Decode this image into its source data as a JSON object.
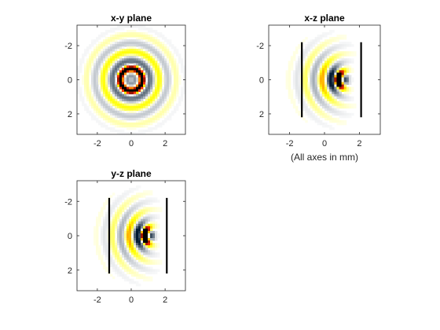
{
  "chart_data": [
    {
      "type": "heatmap",
      "title": "x-y plane",
      "x_ticks": [
        -2,
        0,
        2
      ],
      "y_ticks": [
        -2,
        0,
        2
      ],
      "xlim": [
        -3.2,
        3.2
      ],
      "ylim": [
        -3.2,
        3.2
      ],
      "y_direction": "reverse",
      "colormap": [
        "#001830",
        "#ffffff",
        "#ffff00",
        "#ff4000",
        "#000000"
      ],
      "pattern": "concentric rings centered at origin",
      "barriers": []
    },
    {
      "type": "heatmap",
      "title": "x-z plane",
      "x_ticks": [
        -2,
        0,
        2
      ],
      "y_ticks": [
        -2,
        0,
        2
      ],
      "xlim": [
        -3.2,
        3.2
      ],
      "ylim": [
        -3.2,
        3.2
      ],
      "y_direction": "reverse",
      "colormap": [
        "#001830",
        "#ffffff",
        "#ffff00",
        "#ff4000",
        "#000000"
      ],
      "pattern": "wavefronts emanating from focal region near x≈0.7",
      "barriers": [
        {
          "x": -1.3,
          "y_range": [
            -2.2,
            2.2
          ]
        },
        {
          "x": 2.1,
          "y_range": [
            -2.2,
            2.2
          ]
        }
      ],
      "annotation": "(All axes in mm)"
    },
    {
      "type": "heatmap",
      "title": "y-z plane",
      "x_ticks": [
        -2,
        0,
        2
      ],
      "y_ticks": [
        -2,
        0,
        2
      ],
      "xlim": [
        -3.2,
        3.2
      ],
      "ylim": [
        -3.2,
        3.2
      ],
      "y_direction": "reverse",
      "colormap": [
        "#001830",
        "#ffffff",
        "#ffff00",
        "#ff4000",
        "#000000"
      ],
      "pattern": "wavefronts emanating from focal region near x≈0.7",
      "barriers": [
        {
          "x": -1.3,
          "y_range": [
            -2.2,
            2.2
          ]
        },
        {
          "x": 2.1,
          "y_range": [
            -2.2,
            2.2
          ]
        }
      ]
    }
  ]
}
